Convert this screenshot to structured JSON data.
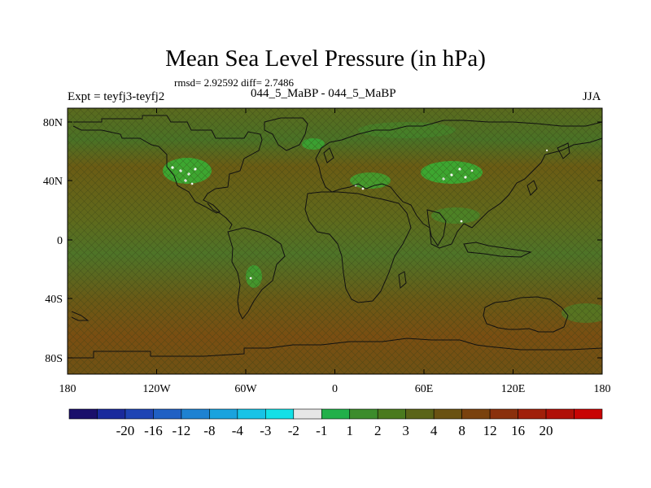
{
  "title": "Mean Sea Level Pressure (in hPa)",
  "stats": "rmsd= 2.92592 diff= 2.7486",
  "expt": "Expt = teyfj3-teyfj2",
  "subtitle": "044_5_MaBP - 044_5_MaBP",
  "season": "JJA",
  "map": {
    "lat_ticks": [
      "80N",
      "40N",
      "0",
      "40S",
      "80S"
    ],
    "lon_ticks": [
      "180",
      "120W",
      "60W",
      "0",
      "60E",
      "120E",
      "180"
    ],
    "background_colors": {
      "high": "#6e5a14",
      "mid": "#4f7428",
      "low": "#3c8a2a",
      "anomaly": "#30c040"
    }
  },
  "colorbar": {
    "colors": [
      "#1a0f6b",
      "#1a2a9c",
      "#1f44b4",
      "#2060c4",
      "#1e82d2",
      "#1aa3de",
      "#18c3e6",
      "#14e0e6",
      "#e6e6e6",
      "#22b04a",
      "#3c8c2c",
      "#4a7a1e",
      "#5a6418",
      "#6a5212",
      "#7a420e",
      "#8a300c",
      "#a0200a",
      "#b01008",
      "#c80404"
    ],
    "labels": [
      "-20",
      "-16",
      "-12",
      "-8",
      "-4",
      "-3",
      "-2",
      "-1",
      "1",
      "2",
      "3",
      "4",
      "8",
      "12",
      "16",
      "20"
    ]
  }
}
